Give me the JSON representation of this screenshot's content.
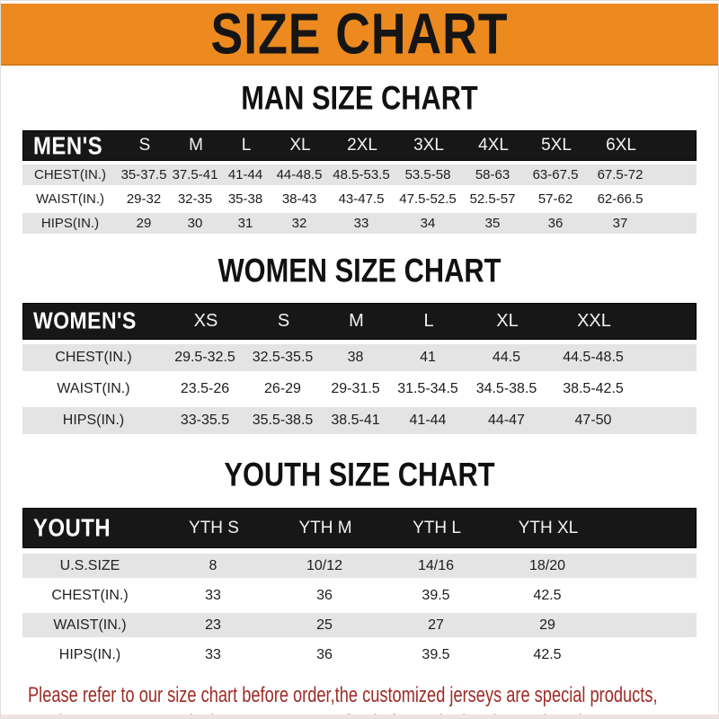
{
  "banner": {
    "title": "SIZE CHART"
  },
  "sections": [
    {
      "heading": "MAN SIZE CHART",
      "header_label": "MEN'S",
      "columns": [
        "S",
        "M",
        "L",
        "XL",
        "2XL",
        "3XL",
        "4XL",
        "5XL",
        "6XL"
      ],
      "rows": [
        {
          "label": "CHEST(IN.)",
          "values": [
            "35-37.5",
            "37.5-41",
            "41-44",
            "44-48.5",
            "48.5-53.5",
            "53.5-58",
            "58-63",
            "63-67.5",
            "67.5-72"
          ]
        },
        {
          "label": "WAIST(IN.)",
          "values": [
            "29-32",
            "32-35",
            "35-38",
            "38-43",
            "43-47.5",
            "47.5-52.5",
            "52.5-57",
            "57-62",
            "62-66.5"
          ]
        },
        {
          "label": "HIPS(IN.)",
          "values": [
            "29",
            "30",
            "31",
            "32",
            "33",
            "34",
            "35",
            "36",
            "37"
          ]
        }
      ]
    },
    {
      "heading": "WOMEN SIZE CHART",
      "header_label": "WOMEN'S",
      "columns": [
        "XS",
        "S",
        "M",
        "L",
        "XL",
        "XXL"
      ],
      "rows": [
        {
          "label": "CHEST(IN.)",
          "values": [
            "29.5-32.5",
            "32.5-35.5",
            "38",
            "41",
            "44.5",
            "44.5-48.5"
          ]
        },
        {
          "label": "WAIST(IN.)",
          "values": [
            "23.5-26",
            "26-29",
            "29-31.5",
            "31.5-34.5",
            "34.5-38.5",
            "38.5-42.5"
          ]
        },
        {
          "label": "HIPS(IN.)",
          "values": [
            "33-35.5",
            "35.5-38.5",
            "38.5-41",
            "41-44",
            "44-47",
            "47-50"
          ]
        }
      ]
    },
    {
      "heading": "YOUTH SIZE CHART",
      "header_label": "YOUTH",
      "columns": [
        "YTH S",
        "YTH M",
        "YTH L",
        "YTH XL"
      ],
      "rows": [
        {
          "label": "U.S.SIZE",
          "values": [
            "8",
            "10/12",
            "14/16",
            "18/20"
          ]
        },
        {
          "label": "CHEST(IN.)",
          "values": [
            "33",
            "36",
            "39.5",
            "42.5"
          ]
        },
        {
          "label": "WAIST(IN.)",
          "values": [
            "23",
            "25",
            "27",
            "29"
          ]
        },
        {
          "label": "HIPS(IN.)",
          "values": [
            "33",
            "36",
            "39.5",
            "42.5"
          ]
        }
      ]
    }
  ],
  "footer": {
    "line1": "Please refer to our size chart before order,the customized jerseys are special products,",
    "line2": "we don't accept cancel, change, teturn or refund after order has been placed!"
  },
  "colors": {
    "accent-orange": "#EC8A1F",
    "banner-text": "#151515",
    "bar-black": "#171717",
    "row-gray": "#e4e4e4",
    "footer-red": "#9E2C27"
  }
}
